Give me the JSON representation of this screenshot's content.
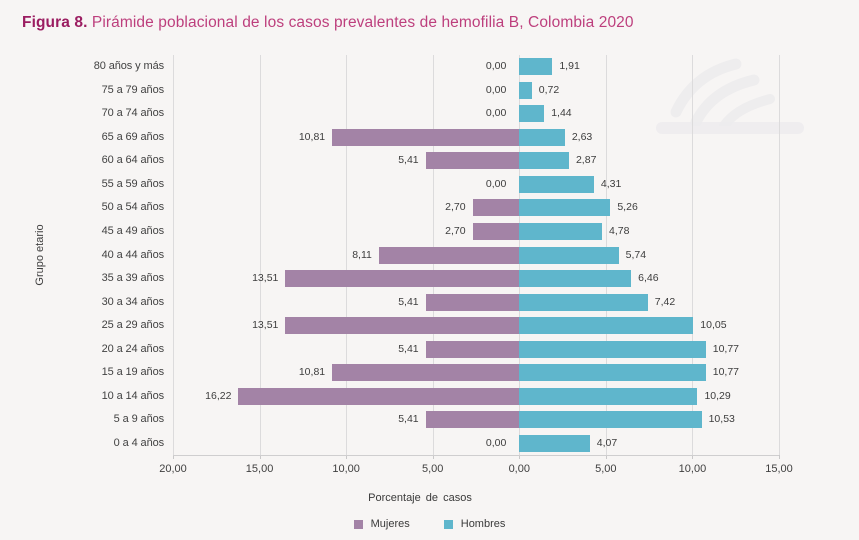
{
  "page": {
    "title_prefix": "Figura 8.",
    "title_rest": " Pirámide poblacional de los casos prevalentes de hemofilia B, Colombia 2020",
    "title_prefix_color": "#9b1d61",
    "title_rest_color": "#bd3f7d",
    "background_color": "#f7f5f4"
  },
  "chart_data": {
    "type": "bar",
    "subtype": "population-pyramid",
    "title": "Pirámide poblacional de los casos prevalentes de hemofilia B, Colombia 2020",
    "ylabel": "Grupo etario",
    "xlabel": "Porcentaje de casos",
    "grid": true,
    "legend_position": "bottom",
    "left_axis_max": 20,
    "right_axis_max": 15,
    "tick_step": 5,
    "x_tick_labels": [
      "20,00",
      "15,00",
      "10,00",
      "5,00",
      "0,00",
      "5,00",
      "10,00",
      "15,00"
    ],
    "categories": [
      "80 años y más",
      "75 a 79 años",
      "70 a 74 años",
      "65 a 69 años",
      "60 a 64 años",
      "55 a 59 años",
      "50 a 54 años",
      "45 a 49 años",
      "40 a 44 años",
      "35 a 39 años",
      "30 a 34 años",
      "25 a 29 años",
      "20 a 24 años",
      "15 a 19 años",
      "10 a 14 años",
      "5 a 9 años",
      "0 a 4 años"
    ],
    "series": [
      {
        "name": "Mujeres",
        "side": "left",
        "color": "#a383a6",
        "values": [
          0.0,
          0.0,
          0.0,
          10.81,
          5.41,
          0.0,
          2.7,
          2.7,
          8.11,
          13.51,
          5.41,
          13.51,
          5.41,
          10.81,
          16.22,
          5.41,
          0.0
        ],
        "labels": [
          "0,00",
          "0,00",
          "0,00",
          "10,81",
          "5,41",
          "0,00",
          "2,70",
          "2,70",
          "8,11",
          "13,51",
          "5,41",
          "13,51",
          "5,41",
          "10,81",
          "16,22",
          "5,41",
          "0,00"
        ]
      },
      {
        "name": "Hombres",
        "side": "right",
        "color": "#5fb6cc",
        "values": [
          1.91,
          0.72,
          1.44,
          2.63,
          2.87,
          4.31,
          5.26,
          4.78,
          5.74,
          6.46,
          7.42,
          10.05,
          10.77,
          10.77,
          10.29,
          10.53,
          4.07
        ],
        "labels": [
          "1,91",
          "0,72",
          "1,44",
          "2,63",
          "2,87",
          "4,31",
          "5,26",
          "4,78",
          "5,74",
          "6,46",
          "7,42",
          "10,05",
          "10,77",
          "10,77",
          "10,29",
          "10,53",
          "4,07"
        ]
      }
    ],
    "legend": [
      {
        "name": "Mujeres",
        "color": "#a383a6"
      },
      {
        "name": "Hombres",
        "color": "#5fb6cc"
      }
    ],
    "gridline_color": "#dcdbdc",
    "label_color": "#3d3d3d"
  }
}
